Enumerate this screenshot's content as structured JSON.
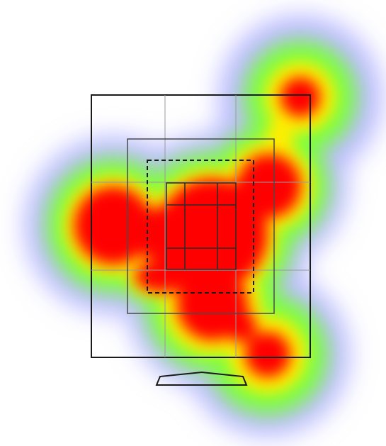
{
  "heatmap": {
    "palette": {
      "peak": "#ff0000",
      "high": "#ffee00",
      "mid": "#7cff3c",
      "low": "#b8b8ff",
      "fade": "#ffffff"
    },
    "hotspots": [
      {
        "name": "hotspot-top-right",
        "intensity": 1.0
      },
      {
        "name": "hotspot-left",
        "intensity": 1.0
      },
      {
        "name": "hotspot-center",
        "intensity": 1.0
      },
      {
        "name": "hotspot-right-upper",
        "intensity": 1.0
      },
      {
        "name": "hotspot-bottom",
        "intensity": 1.0
      },
      {
        "name": "hotspot-bottom-right",
        "intensity": 1.0
      }
    ]
  },
  "overlay": {
    "line_color": "#1a1a1a",
    "grid_color": "#9a9a9a",
    "outer_grid": "3x3",
    "inner_grid": "3x3",
    "center_box_style": "dashed",
    "stand": "monitor-stand"
  }
}
